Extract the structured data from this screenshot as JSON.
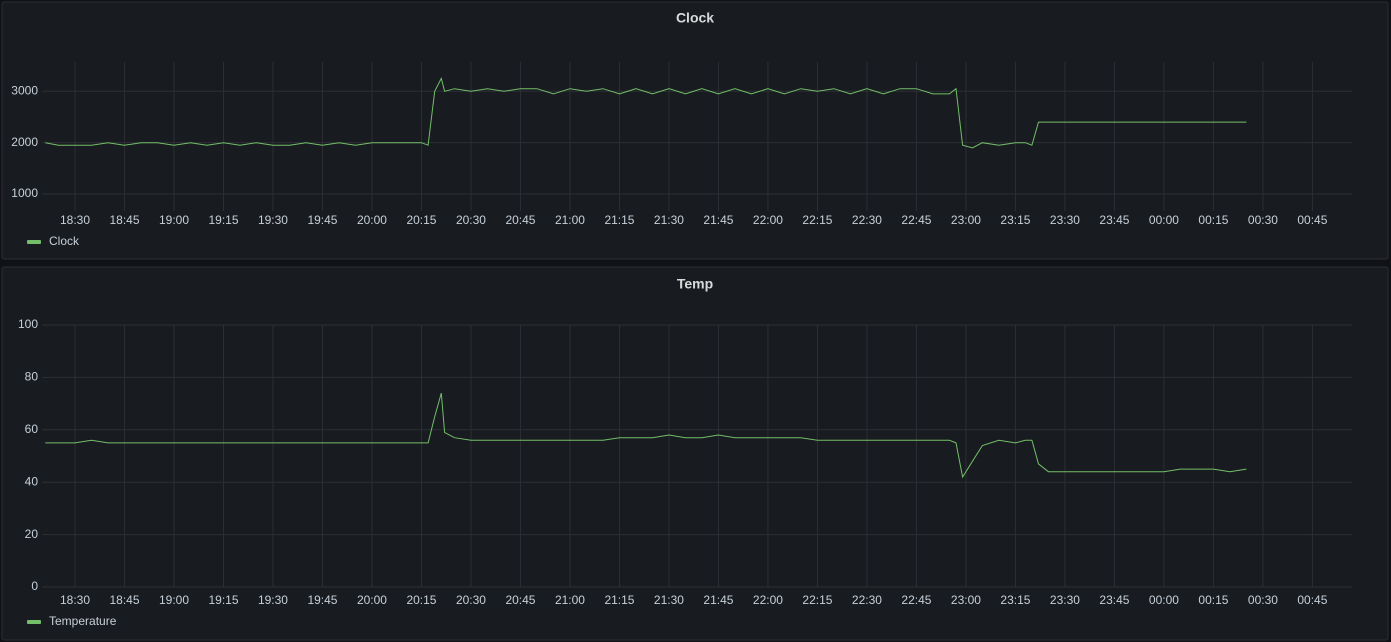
{
  "chart_data": [
    {
      "type": "line",
      "title": "Clock",
      "x": [
        "18:21",
        "18:25",
        "18:30",
        "18:35",
        "18:40",
        "18:45",
        "18:50",
        "18:55",
        "19:00",
        "19:05",
        "19:10",
        "19:15",
        "19:20",
        "19:25",
        "19:30",
        "19:35",
        "19:40",
        "19:45",
        "19:50",
        "19:55",
        "20:00",
        "20:05",
        "20:10",
        "20:15",
        "20:17",
        "20:19",
        "20:21",
        "20:22",
        "20:25",
        "20:30",
        "20:35",
        "20:40",
        "20:45",
        "20:50",
        "20:55",
        "21:00",
        "21:05",
        "21:10",
        "21:15",
        "21:20",
        "21:25",
        "21:30",
        "21:35",
        "21:40",
        "21:45",
        "21:50",
        "21:55",
        "22:00",
        "22:05",
        "22:10",
        "22:15",
        "22:20",
        "22:25",
        "22:30",
        "22:35",
        "22:40",
        "22:45",
        "22:50",
        "22:55",
        "22:57",
        "22:59",
        "23:02",
        "23:05",
        "23:10",
        "23:15",
        "23:18",
        "23:20",
        "23:22",
        "23:25",
        "23:30",
        "23:45",
        "00:00",
        "00:05",
        "00:10",
        "00:15",
        "00:20",
        "00:25"
      ],
      "xlim": [
        "18:20",
        "00:57"
      ],
      "xticks": [
        "18:30",
        "18:45",
        "19:00",
        "19:15",
        "19:30",
        "19:45",
        "20:00",
        "20:15",
        "20:30",
        "20:45",
        "21:00",
        "21:15",
        "21:30",
        "21:45",
        "22:00",
        "22:15",
        "22:30",
        "22:45",
        "23:00",
        "23:15",
        "23:30",
        "23:45",
        "00:00",
        "00:15",
        "00:30",
        "00:45"
      ],
      "ylim": [
        670,
        3570
      ],
      "yticks": [
        1000,
        2000,
        3000
      ],
      "grid": true,
      "legend": "bottom-left",
      "series": [
        {
          "name": "Clock",
          "color": "#73bf69",
          "values": [
            2000,
            1950,
            1950,
            1950,
            2000,
            1950,
            2000,
            2000,
            1950,
            2000,
            1950,
            2000,
            1950,
            2000,
            1950,
            1950,
            2000,
            1950,
            2000,
            1950,
            2000,
            2000,
            2000,
            2000,
            1950,
            3000,
            3250,
            3000,
            3050,
            3000,
            3050,
            3000,
            3050,
            3050,
            2950,
            3050,
            3000,
            3050,
            2950,
            3050,
            2950,
            3050,
            2950,
            3050,
            2950,
            3050,
            2950,
            3050,
            2950,
            3050,
            3000,
            3050,
            2950,
            3050,
            2950,
            3050,
            3050,
            2950,
            2950,
            3050,
            1950,
            1900,
            2000,
            1950,
            2000,
            2000,
            1950,
            2400,
            2400,
            2400,
            2400,
            2400,
            2400,
            2400,
            2400,
            2400,
            2400
          ]
        }
      ]
    },
    {
      "type": "line",
      "title": "Temp",
      "x": [
        "18:21",
        "18:25",
        "18:30",
        "18:35",
        "18:40",
        "18:45",
        "18:50",
        "18:55",
        "19:00",
        "19:05",
        "19:10",
        "19:15",
        "19:20",
        "19:25",
        "19:30",
        "19:35",
        "19:40",
        "19:45",
        "19:50",
        "19:55",
        "20:00",
        "20:05",
        "20:10",
        "20:15",
        "20:17",
        "20:19",
        "20:21",
        "20:22",
        "20:25",
        "20:30",
        "20:35",
        "20:40",
        "20:45",
        "20:50",
        "20:55",
        "21:00",
        "21:05",
        "21:10",
        "21:15",
        "21:20",
        "21:25",
        "21:30",
        "21:35",
        "21:40",
        "21:45",
        "21:50",
        "21:55",
        "22:00",
        "22:05",
        "22:10",
        "22:15",
        "22:20",
        "22:25",
        "22:30",
        "22:35",
        "22:40",
        "22:45",
        "22:50",
        "22:55",
        "22:57",
        "22:59",
        "23:02",
        "23:05",
        "23:10",
        "23:15",
        "23:18",
        "23:20",
        "23:22",
        "23:25",
        "23:30",
        "23:45",
        "00:00",
        "00:05",
        "00:10",
        "00:15",
        "00:20",
        "00:25"
      ],
      "xlim": [
        "18:20",
        "00:57"
      ],
      "xticks": [
        "18:30",
        "18:45",
        "19:00",
        "19:15",
        "19:30",
        "19:45",
        "20:00",
        "20:15",
        "20:30",
        "20:45",
        "21:00",
        "21:15",
        "21:30",
        "21:45",
        "22:00",
        "22:15",
        "22:30",
        "22:45",
        "23:00",
        "23:15",
        "23:30",
        "23:45",
        "00:00",
        "00:15",
        "00:30",
        "00:45"
      ],
      "ylim": [
        0,
        100
      ],
      "yticks": [
        0,
        20,
        40,
        60,
        80,
        100
      ],
      "grid": true,
      "legend": "bottom-left",
      "series": [
        {
          "name": "Temperature",
          "color": "#73bf69",
          "values": [
            55,
            55,
            55,
            56,
            55,
            55,
            55,
            55,
            55,
            55,
            55,
            55,
            55,
            55,
            55,
            55,
            55,
            55,
            55,
            55,
            55,
            55,
            55,
            55,
            55,
            65,
            74,
            59,
            57,
            56,
            56,
            56,
            56,
            56,
            56,
            56,
            56,
            56,
            57,
            57,
            57,
            58,
            57,
            57,
            58,
            57,
            57,
            57,
            57,
            57,
            56,
            56,
            56,
            56,
            56,
            56,
            56,
            56,
            56,
            55,
            42,
            48,
            54,
            56,
            55,
            56,
            56,
            47,
            44,
            44,
            44,
            44,
            45,
            45,
            45,
            44,
            45
          ]
        }
      ]
    }
  ]
}
